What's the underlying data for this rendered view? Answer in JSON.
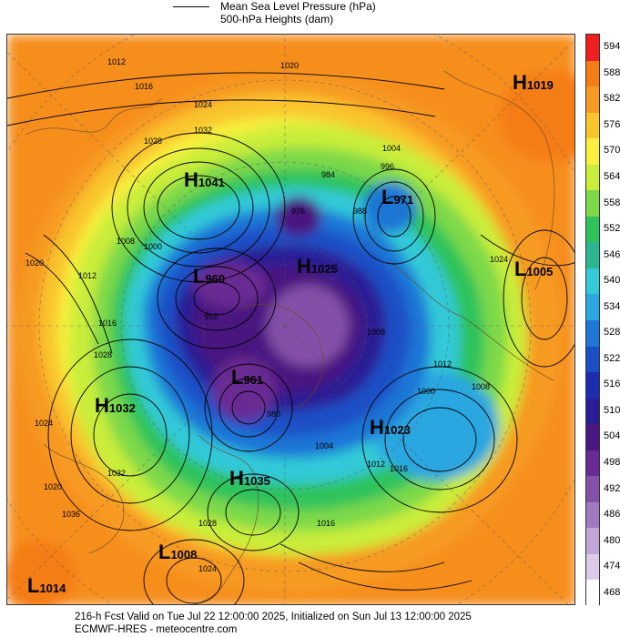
{
  "legend": {
    "line1": "Mean Sea Level Pressure (hPa)",
    "line2": "500-hPa Heights (dam)"
  },
  "colorbar": {
    "labels": [
      "594",
      "588",
      "582",
      "576",
      "570",
      "564",
      "558",
      "552",
      "546",
      "540",
      "534",
      "528",
      "522",
      "516",
      "510",
      "504",
      "498",
      "492",
      "486",
      "480",
      "474",
      "468"
    ],
    "colors": [
      "#ef1f1f",
      "#f57d15",
      "#f79a23",
      "#f9c52d",
      "#f8f03c",
      "#c9ed3a",
      "#7dd948",
      "#2fc35b",
      "#2db58f",
      "#33c9d8",
      "#2aa6e0",
      "#1e76d6",
      "#1b4fc6",
      "#1c2db0",
      "#2a1d95",
      "#4a1680",
      "#6a2a93",
      "#8450a8",
      "#a179c1",
      "#c3a6d8",
      "#dccbe8",
      "#ffffff"
    ]
  },
  "pressure_centers": [
    {
      "type": "H",
      "value": "1019"
    },
    {
      "type": "H",
      "value": "1041"
    },
    {
      "type": "L",
      "value": "971"
    },
    {
      "type": "L",
      "value": "960"
    },
    {
      "type": "H",
      "value": "1025"
    },
    {
      "type": "L",
      "value": "1005"
    },
    {
      "type": "L",
      "value": "961"
    },
    {
      "type": "H",
      "value": "1032"
    },
    {
      "type": "H",
      "value": "1023"
    },
    {
      "type": "H",
      "value": "1035"
    },
    {
      "type": "L",
      "value": "1008"
    },
    {
      "type": "L",
      "value": "1014"
    }
  ],
  "isobar_labels": [
    "1012",
    "1016",
    "1020",
    "1024",
    "1028",
    "1032",
    "1000",
    "1004",
    "1008",
    "996",
    "992",
    "976",
    "984",
    "988",
    "980",
    "1012",
    "1016",
    "1020",
    "1024",
    "1000",
    "1008",
    "1004",
    "1012",
    "1016",
    "1024",
    "1028",
    "1020",
    "1016",
    "1012",
    "1008",
    "1024",
    "1028",
    "1032",
    "1036"
  ],
  "footer": {
    "line1": "216-h Fcst Valid on Tue Jul 22 12:00:00 2025, Initialized on Sun Jul 13 12:00:00 2025",
    "line2": "ECMWF-HRES - meteocentre.com"
  }
}
